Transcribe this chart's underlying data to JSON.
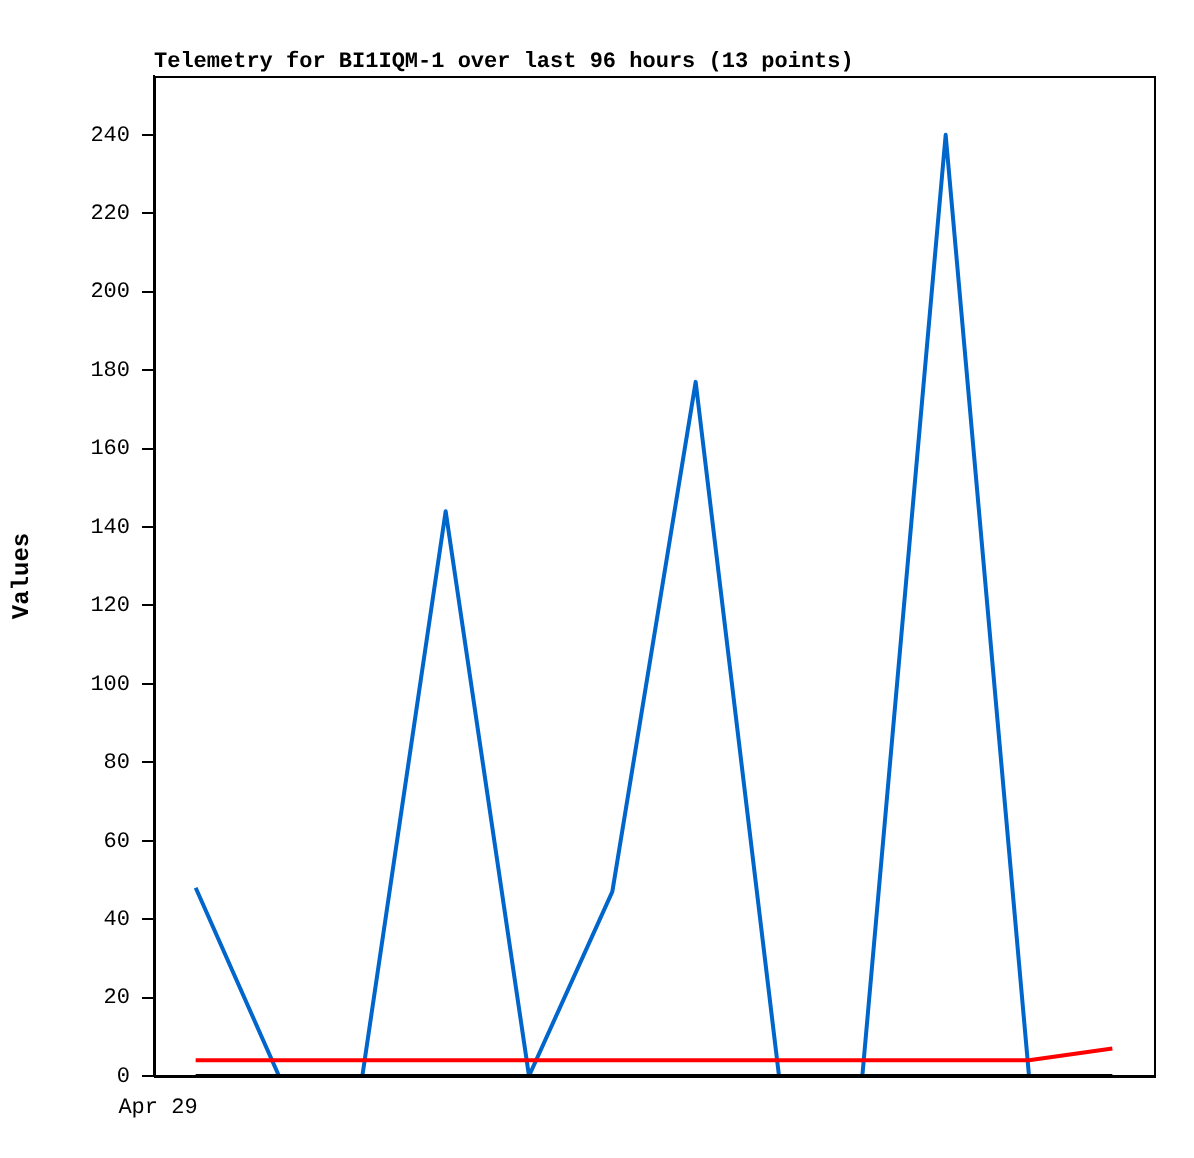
{
  "chart_data": {
    "type": "line",
    "title": "Telemetry for BI1IQM-1 over last 96 hours (13 points)",
    "ylabel": "Values",
    "categories": [
      null,
      null,
      null,
      null,
      null,
      null,
      null,
      null,
      null,
      null,
      null,
      null
    ],
    "annotations": [
      "Apr 29"
    ],
    "ylim": [
      0,
      255
    ],
    "yticks": [
      0,
      20,
      40,
      60,
      80,
      100,
      120,
      140,
      160,
      180,
      200,
      220,
      240
    ],
    "grid": false,
    "legend": false,
    "marker": "none",
    "line_style": "solid",
    "series": [
      {
        "color": "#000000",
        "values": [
          0,
          0,
          0,
          0,
          0,
          0,
          0,
          0,
          0,
          0,
          0,
          0
        ]
      },
      {
        "color": "#ff0000",
        "values": [
          4,
          4,
          4,
          4,
          4,
          4,
          4,
          4,
          4,
          4,
          4,
          7
        ]
      },
      {
        "color": "#0066cc",
        "values": [
          48,
          0,
          0,
          144,
          0,
          47,
          177,
          0,
          0,
          240,
          0,
          null
        ]
      }
    ]
  }
}
